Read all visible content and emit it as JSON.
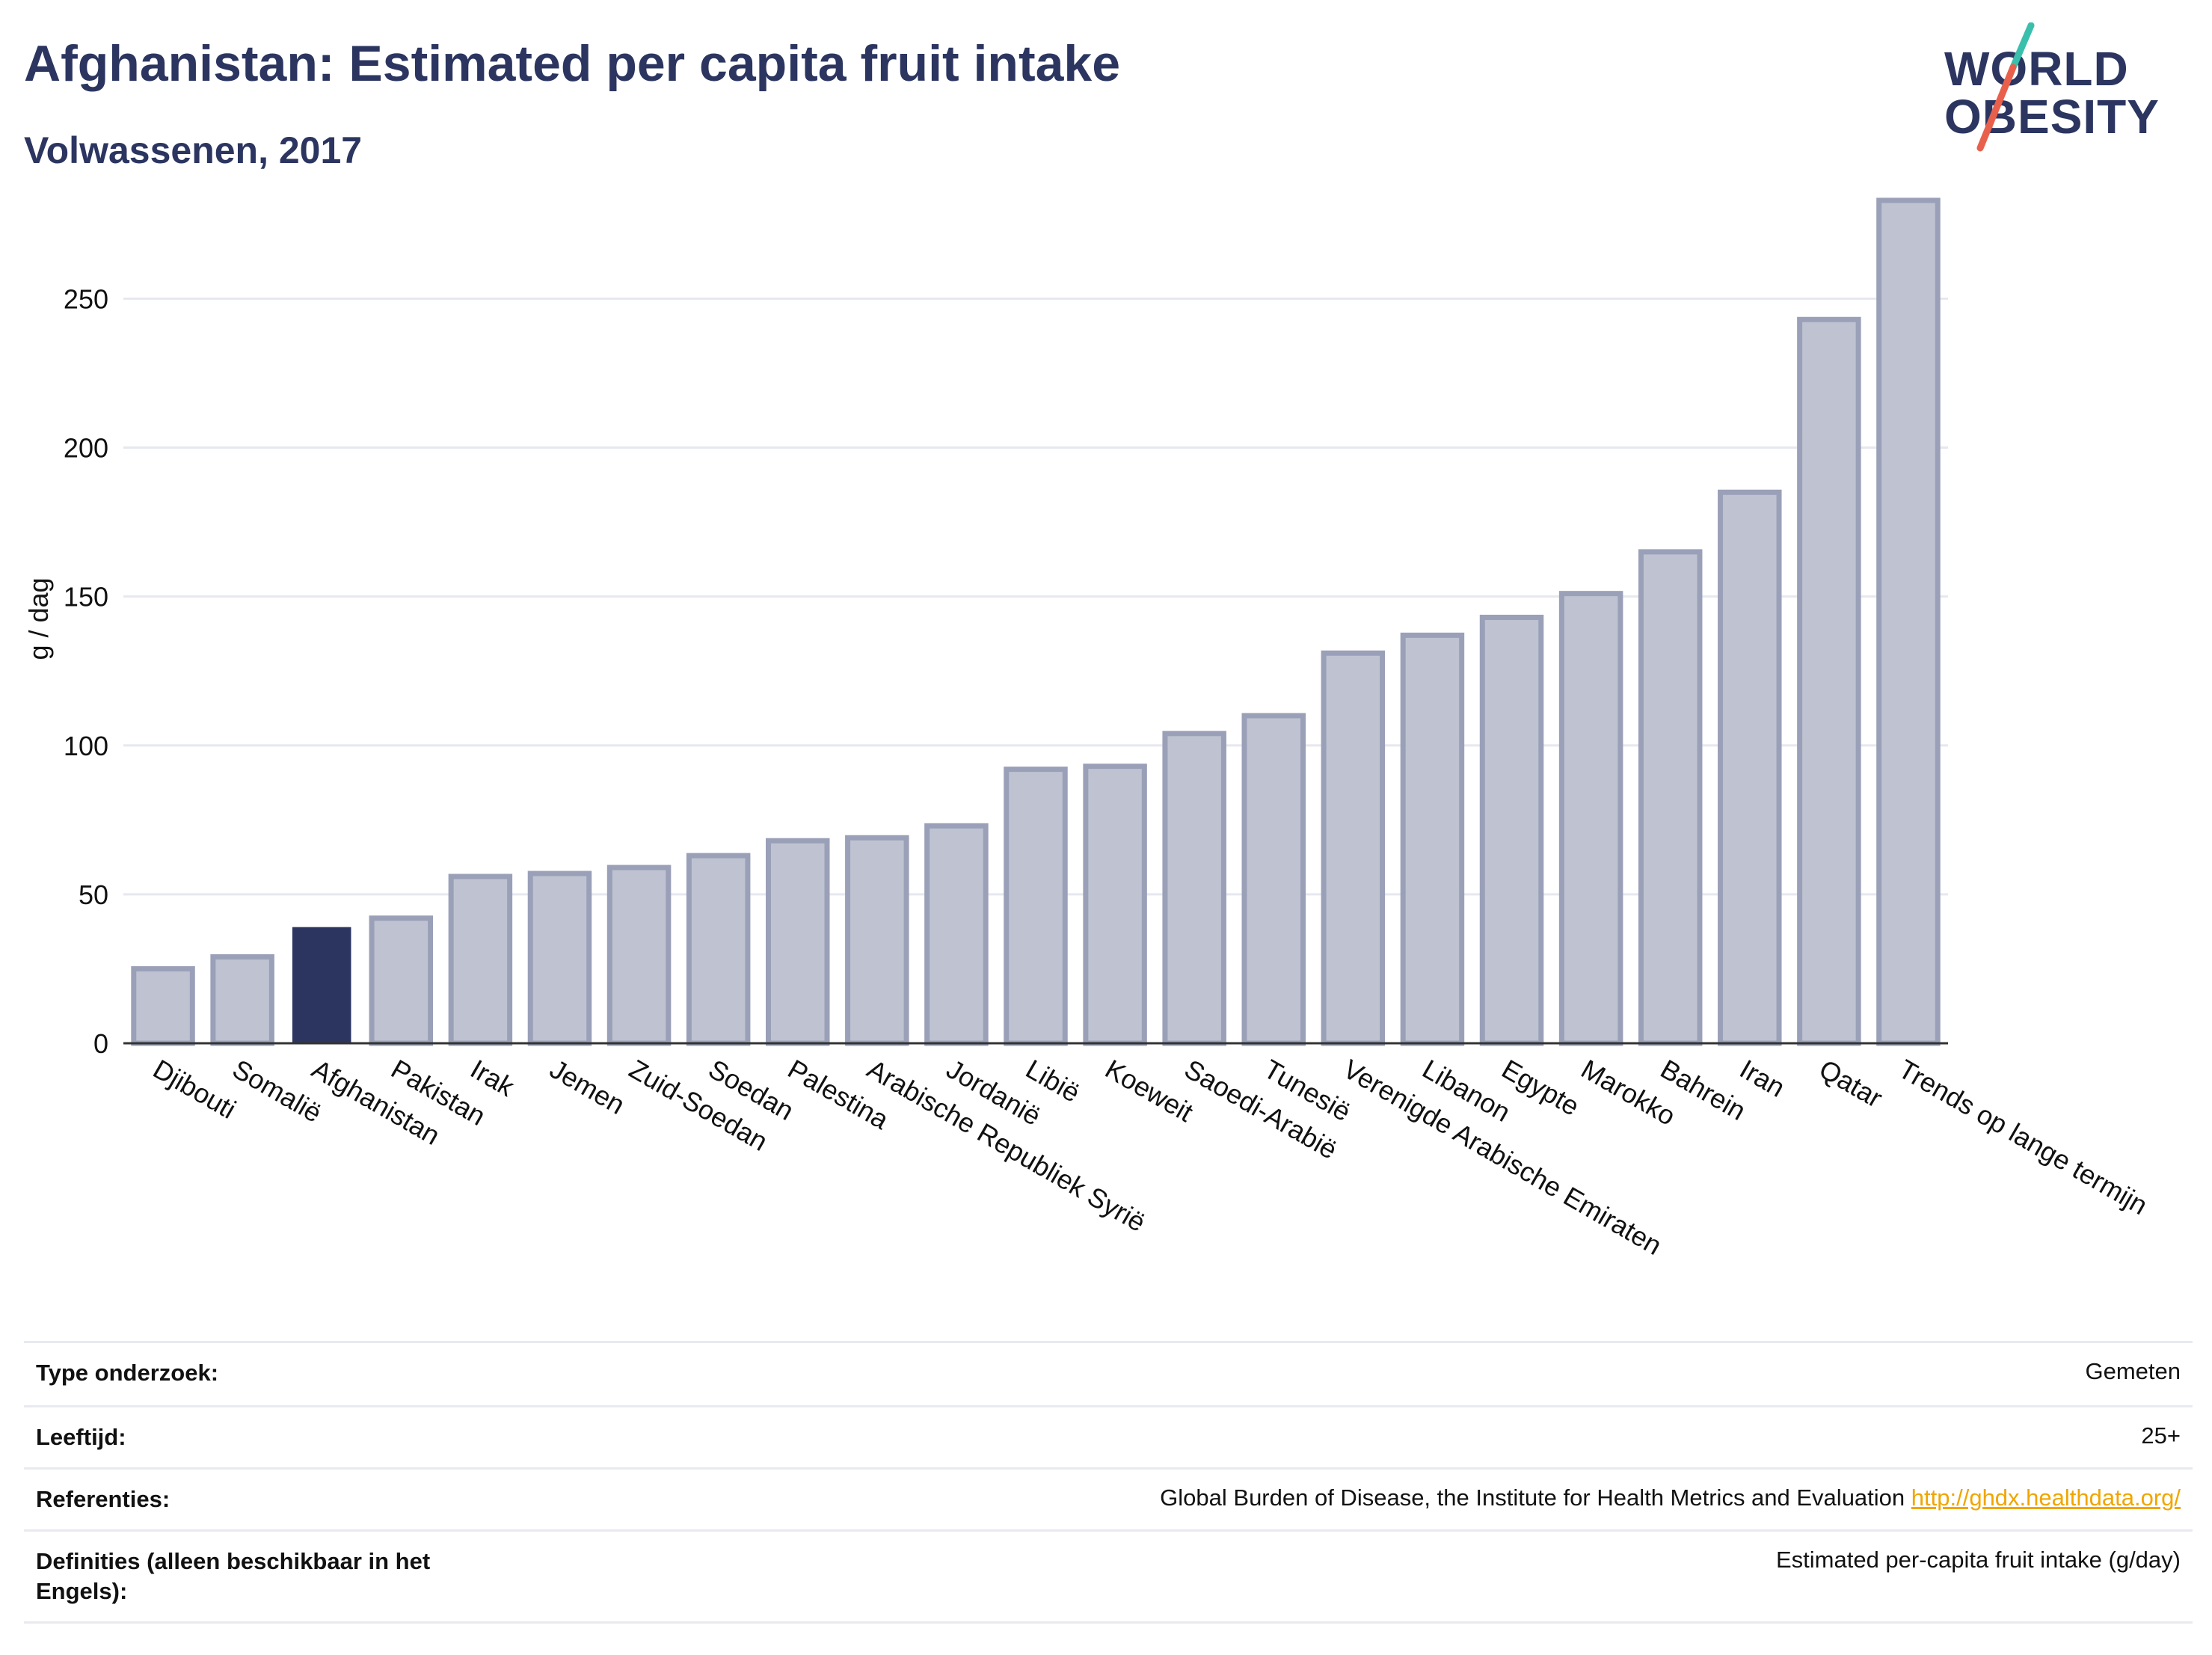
{
  "header": {
    "title": "Afghanistan: Estimated per capita fruit intake",
    "subtitle": "Volwassenen, 2017"
  },
  "logo": {
    "line1": "WORLD",
    "line2": "OBESITY",
    "accent_teal": "#3bbfad",
    "accent_red": "#e8604c"
  },
  "chart_data": {
    "type": "bar",
    "ylabel": "g / dag",
    "ylim": [
      0,
      285
    ],
    "yticks": [
      0,
      50,
      100,
      150,
      200,
      250
    ],
    "categories": [
      "Djibouti",
      "Somalië",
      "Afghanistan",
      "Pakistan",
      "Irak",
      "Jemen",
      "Zuid-Soedan",
      "Soedan",
      "Palestina",
      "Arabische Republiek Syrië",
      "Jordanië",
      "Libië",
      "Koeweit",
      "Saoedi-Arabië",
      "Tunesië",
      "Verenigde Arabische Emiraten",
      "Libanon",
      "Egypte",
      "Marokko",
      "Bahrein",
      "Iran",
      "Qatar",
      "Trends op lange termijn"
    ],
    "values": [
      25,
      29,
      39,
      42,
      56,
      57,
      59,
      63,
      68,
      69,
      73,
      92,
      93,
      104,
      110,
      131,
      137,
      143,
      151,
      165,
      185,
      243,
      283
    ],
    "highlight": "Afghanistan",
    "colors": {
      "highlight": "#2b3560",
      "bar_fill": "#bfc3d1",
      "bar_stroke": "#9aa0b8",
      "grid": "#e6e8ef"
    },
    "grid": true
  },
  "info": {
    "rows": [
      {
        "label": "Type onderzoek:",
        "value": "Gemeten"
      },
      {
        "label": "Leeftijd:",
        "value": "25+"
      },
      {
        "label": "Referenties:",
        "value": "Global Burden of Disease, the Institute for Health Metrics and Evaluation",
        "link": "http://ghdx.healthdata.org/"
      },
      {
        "label": "Definities (alleen beschikbaar in het Engels):",
        "value": "Estimated per-capita fruit intake (g/day)"
      }
    ]
  }
}
